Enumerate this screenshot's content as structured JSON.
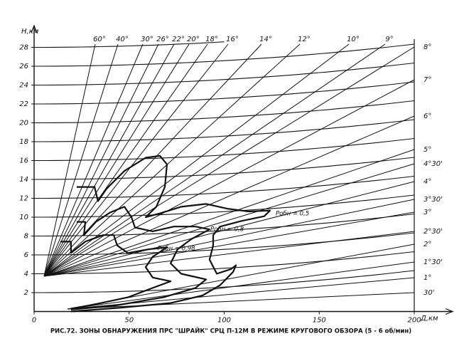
{
  "chart_data": {
    "type": "line",
    "caption": "РИС.72. ЗОНЫ ОБНАРУЖЕНИЯ ПРС \"ШРАЙК\" СРЦ П-12М В РЕЖИМЕ КРУГОВОГО ОБЗОРА (5 - 6 об/мин)",
    "x_label": "Д,км",
    "y_label": "H,км",
    "xlim": [
      0,
      200
    ],
    "xticks": [
      0,
      50,
      100,
      150,
      200
    ],
    "ylim": [
      0,
      29.5
    ],
    "yticks": [
      2,
      4,
      6,
      8,
      10,
      12,
      14,
      16,
      18,
      20,
      22,
      24,
      26,
      28
    ],
    "grid": true,
    "color": "#111",
    "top_angle_labels": [
      "60°",
      "40°",
      "30°",
      "26°",
      "22°",
      "20°",
      "18°",
      "16°",
      "14°",
      "12°",
      "10°",
      "9°"
    ],
    "right_angle_labels": [
      "8°",
      "7°",
      "6°",
      "5°",
      "4°30'",
      "4°",
      "3°30'",
      "3°",
      "2°30'",
      "2°",
      "1°30'",
      "1°",
      "30'"
    ],
    "series": [
      {
        "name": "Pобн = 0,5",
        "color": "#111",
        "x": [
          22.4,
          31.8,
          33.6,
          38.1,
          47.5,
          58.7,
          66.2,
          69.9,
          68.8,
          64.3,
          58.7,
          66.2,
          77.4,
          90.5,
          101.7,
          112.9,
          124.1,
          121.1,
          109.2,
          97.9,
          94.2,
          94.2,
          92.3,
          96.1,
          103.6,
          106.2,
          104.7,
          97.9,
          88.6,
          71.8,
          45.6,
          19.4
        ],
        "values": [
          13.2,
          13.2,
          11.7,
          13.0,
          14.9,
          16.3,
          16.5,
          15.6,
          13.2,
          11.1,
          10.0,
          10.4,
          11.1,
          11.4,
          10.9,
          10.6,
          10.7,
          10.1,
          9.6,
          9.0,
          8.1,
          7.0,
          5.5,
          4.0,
          4.5,
          4.9,
          4.2,
          2.8,
          1.7,
          0.9,
          0.4,
          0.0
        ]
      },
      {
        "name": "Pобн = 0,8",
        "color": "#111",
        "x": [
          22.4,
          26.9,
          26.2,
          32.5,
          40.0,
          47.5,
          51.2,
          53.1,
          62.4,
          73.6,
          84.9,
          92.3,
          82.9,
          75.5,
          71.8,
          77.4,
          90.5,
          84.9,
          68.0,
          41.9,
          19.4
        ],
        "values": [
          9.5,
          9.5,
          8.1,
          9.5,
          10.5,
          11.1,
          10.0,
          8.9,
          8.5,
          9.0,
          9.0,
          8.7,
          7.7,
          6.6,
          5.1,
          4.0,
          3.4,
          2.5,
          1.5,
          0.6,
          0.2
        ]
      },
      {
        "name": "Pобн = 0,98",
        "color": "#111",
        "x": [
          13.8,
          19.4,
          19.4,
          26.9,
          36.3,
          41.9,
          43.7,
          49.3,
          60.6,
          69.9,
          62.4,
          58.7,
          62.4,
          71.8,
          62.4,
          49.3,
          30.7,
          19.4
        ],
        "values": [
          7.4,
          7.4,
          6.2,
          7.4,
          8.1,
          8.1,
          7.0,
          6.2,
          6.6,
          6.8,
          5.8,
          4.7,
          3.6,
          3.2,
          2.5,
          1.5,
          0.7,
          0.3
        ]
      }
    ]
  }
}
